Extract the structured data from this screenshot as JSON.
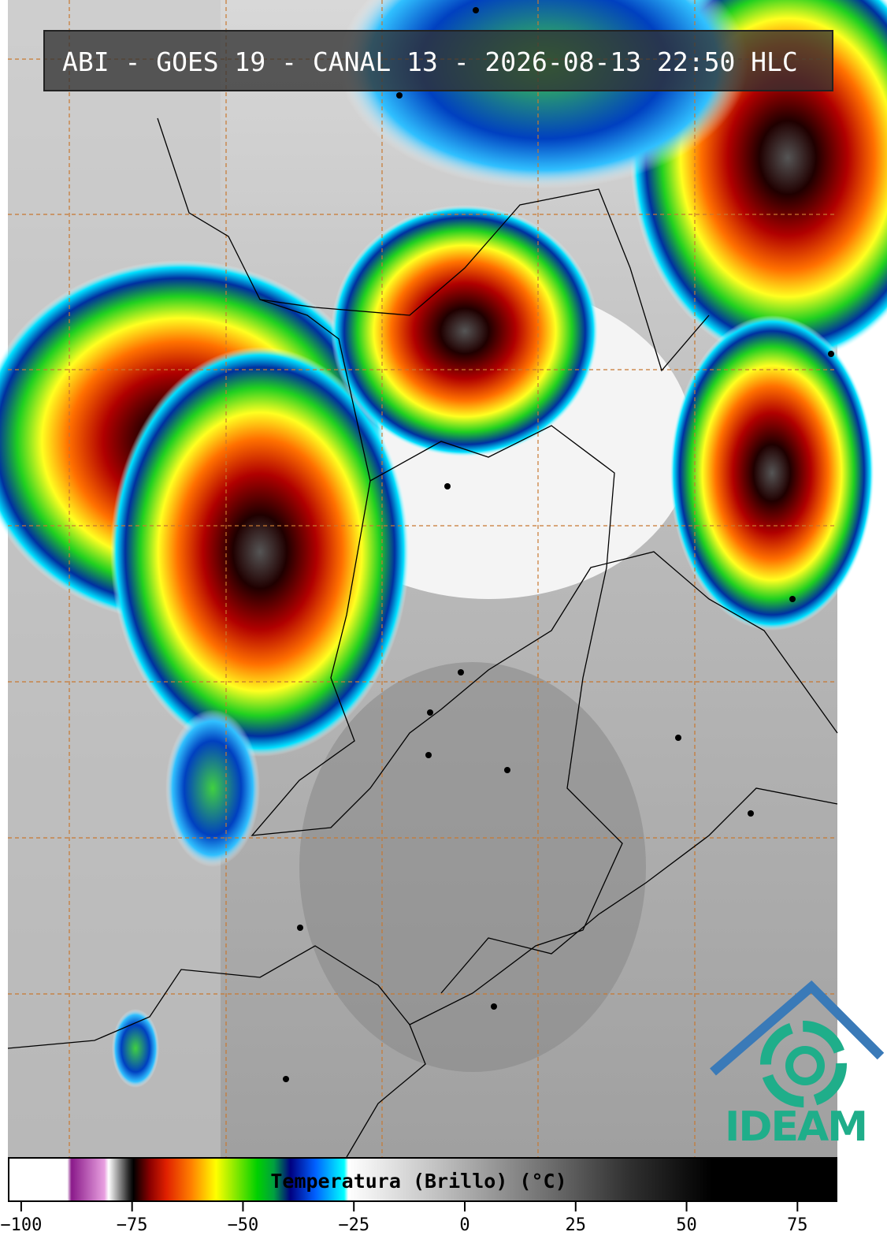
{
  "header": {
    "title": "ABI - GOES 19 - CANAL 13 - 2026-08-13 22:50 HLC"
  },
  "colorbar": {
    "label": "Temperatura (Brillo) (°C)",
    "xlim": [
      -103,
      84
    ],
    "xticks": [
      {
        "value": -100,
        "label": "−100"
      },
      {
        "value": -75,
        "label": "−75"
      },
      {
        "value": -50,
        "label": "−50"
      },
      {
        "value": -25,
        "label": "−25"
      },
      0,
      25,
      50,
      75
    ]
  },
  "logo": {
    "text": "IDEAM"
  }
}
